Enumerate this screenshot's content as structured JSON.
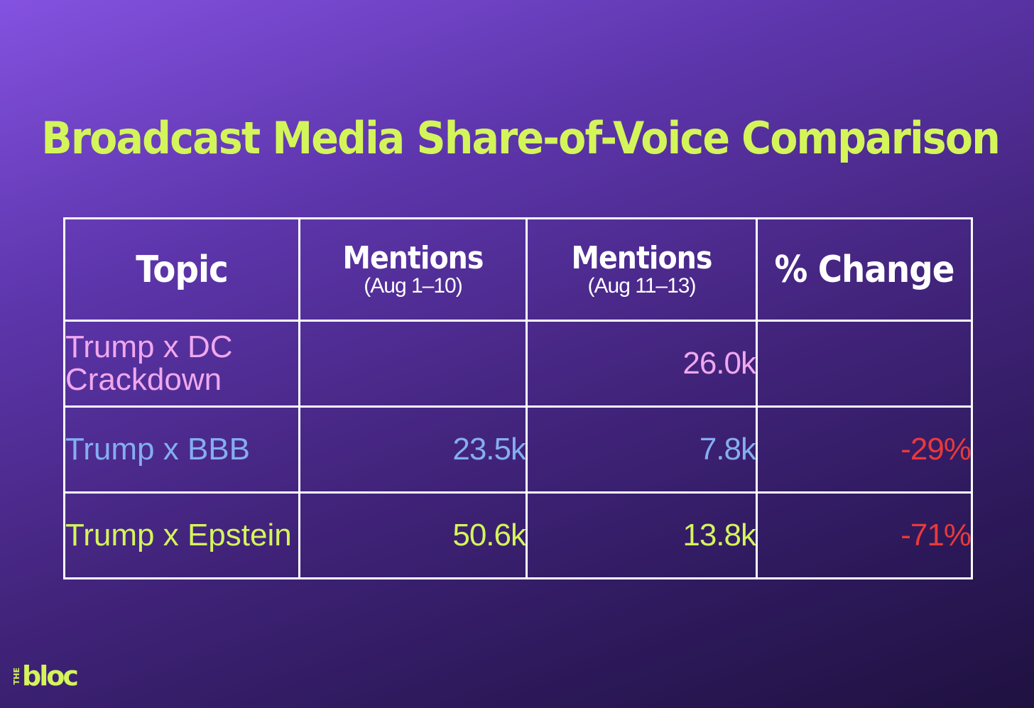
{
  "title": "Broadcast Media Share-of-Voice Comparison",
  "colors": {
    "title": "#d4f55a",
    "header_text": "#ffffff",
    "grid": "#ffffff",
    "negative_change": "#e83a3a",
    "row_dc": "#f0a8ee",
    "row_bbb": "#84aef0",
    "row_epstein": "#d4f55a",
    "logo": "#d4f55a"
  },
  "table": {
    "headers": {
      "topic": "Topic",
      "mentions_1": "Mentions",
      "mentions_1_sub": "(Aug 1–10)",
      "mentions_2": "Mentions",
      "mentions_2_sub": "(Aug 11–13)",
      "change": "% Change"
    },
    "rows": [
      {
        "topic": "Trump x DC Crackdown",
        "mentions_aug1_10": "",
        "mentions_aug11_13": "26.0k",
        "change": ""
      },
      {
        "topic": "Trump x BBB",
        "mentions_aug1_10": "23.5k",
        "mentions_aug11_13": "7.8k",
        "change": "-29%"
      },
      {
        "topic": "Trump x Epstein",
        "mentions_aug1_10": "50.6k",
        "mentions_aug11_13": "13.8k",
        "change": "-71%"
      }
    ]
  },
  "logo": {
    "small": "THE",
    "main": "bloc"
  }
}
